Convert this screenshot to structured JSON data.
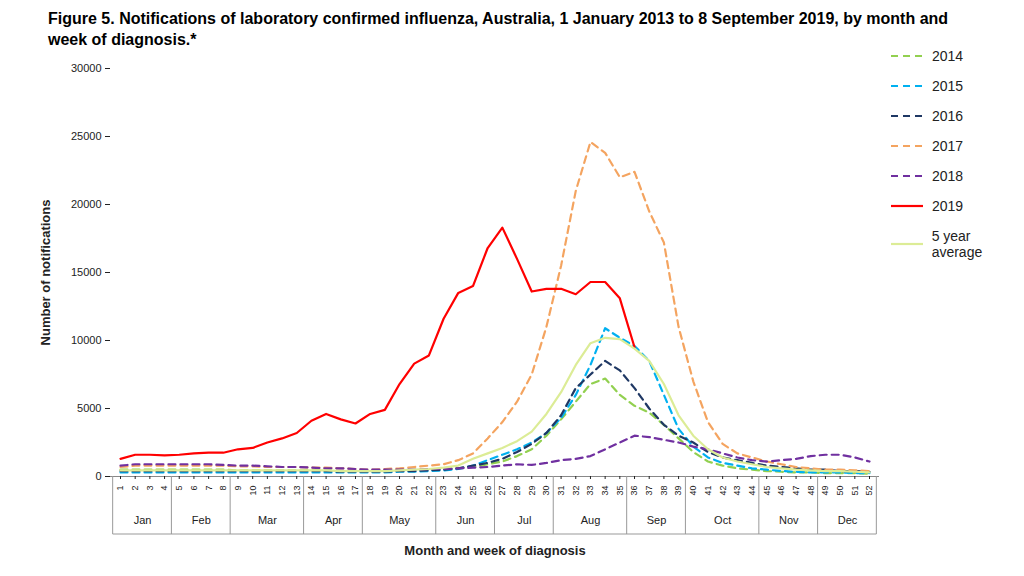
{
  "chart_data": {
    "type": "line",
    "title": "Figure 5. Notifications of laboratory confirmed influenza, Australia, 1 January 2013 to 8 September 2019, by month and week of diagnosis.*",
    "x_label": "Month and week of diagnosis",
    "y_label": "Number of notifications",
    "x": [
      1,
      2,
      3,
      4,
      5,
      6,
      7,
      8,
      9,
      10,
      11,
      12,
      13,
      14,
      15,
      16,
      17,
      18,
      19,
      20,
      21,
      22,
      23,
      24,
      25,
      26,
      27,
      28,
      29,
      30,
      31,
      32,
      33,
      34,
      35,
      36,
      37,
      38,
      39,
      40,
      41,
      42,
      43,
      44,
      45,
      46,
      47,
      48,
      49,
      50,
      51,
      52
    ],
    "xlim": [
      1,
      52
    ],
    "xticks": [
      1,
      2,
      3,
      4,
      5,
      6,
      7,
      8,
      9,
      10,
      11,
      12,
      13,
      14,
      15,
      16,
      17,
      18,
      19,
      20,
      21,
      22,
      23,
      24,
      25,
      26,
      27,
      28,
      29,
      30,
      31,
      32,
      33,
      34,
      35,
      36,
      37,
      38,
      39,
      40,
      41,
      42,
      43,
      44,
      45,
      46,
      47,
      48,
      49,
      50,
      51,
      52
    ],
    "ylim": [
      0,
      30000
    ],
    "yticks": [
      0,
      5000,
      10000,
      15000,
      20000,
      25000,
      30000
    ],
    "grid": false,
    "legend": "right",
    "months": [
      {
        "label": "Jan",
        "start": 1,
        "end": 4
      },
      {
        "label": "Feb",
        "start": 5,
        "end": 8
      },
      {
        "label": "Mar",
        "start": 9,
        "end": 13
      },
      {
        "label": "Apr",
        "start": 14,
        "end": 17
      },
      {
        "label": "May",
        "start": 18,
        "end": 22
      },
      {
        "label": "Jun",
        "start": 23,
        "end": 26
      },
      {
        "label": "Jul",
        "start": 27,
        "end": 30
      },
      {
        "label": "Aug",
        "start": 31,
        "end": 35
      },
      {
        "label": "Sep",
        "start": 36,
        "end": 39
      },
      {
        "label": "Oct",
        "start": 40,
        "end": 44
      },
      {
        "label": "Nov",
        "start": 45,
        "end": 48
      },
      {
        "label": "Dec",
        "start": 49,
        "end": 52
      }
    ],
    "series": [
      {
        "name": "2014",
        "color": "#92d050",
        "line_style": "dashed",
        "values": [
          500,
          500,
          500,
          500,
          500,
          500,
          500,
          500,
          450,
          450,
          450,
          450,
          450,
          450,
          450,
          400,
          400,
          400,
          400,
          450,
          450,
          500,
          550,
          600,
          700,
          900,
          1100,
          1500,
          2000,
          3000,
          4200,
          5500,
          6800,
          7200,
          6000,
          5200,
          4700,
          3800,
          2800,
          1800,
          1100,
          800,
          600,
          500,
          400,
          350,
          300,
          300,
          250,
          250,
          250,
          200
        ]
      },
      {
        "name": "2015",
        "color": "#00b0f0",
        "line_style": "dashed",
        "values": [
          300,
          300,
          300,
          300,
          300,
          300,
          300,
          300,
          300,
          300,
          300,
          300,
          300,
          300,
          300,
          300,
          300,
          300,
          300,
          350,
          350,
          400,
          450,
          550,
          800,
          1200,
          1600,
          2000,
          2500,
          3200,
          4300,
          6000,
          8200,
          10900,
          10200,
          9600,
          8500,
          6000,
          3500,
          2200,
          1400,
          1000,
          800,
          600,
          500,
          400,
          350,
          300,
          300,
          300,
          250,
          250
        ]
      },
      {
        "name": "2016",
        "color": "#1f3864",
        "line_style": "dashed",
        "values": [
          400,
          400,
          400,
          400,
          400,
          400,
          400,
          400,
          400,
          400,
          400,
          400,
          400,
          400,
          400,
          350,
          350,
          350,
          350,
          400,
          400,
          450,
          500,
          600,
          800,
          1000,
          1300,
          1800,
          2400,
          3200,
          4500,
          6500,
          7500,
          8500,
          7800,
          6500,
          5000,
          3800,
          3000,
          2500,
          1800,
          1400,
          1200,
          1000,
          800,
          700,
          600,
          500,
          500,
          400,
          400,
          350
        ]
      },
      {
        "name": "2017",
        "color": "#f4a460",
        "line_style": "dashed",
        "values": [
          700,
          800,
          800,
          800,
          800,
          800,
          800,
          800,
          750,
          750,
          700,
          700,
          700,
          650,
          650,
          600,
          550,
          500,
          550,
          600,
          700,
          800,
          900,
          1200,
          1700,
          2800,
          4000,
          5500,
          7500,
          11000,
          15500,
          21000,
          24600,
          23800,
          22000,
          22400,
          19500,
          17200,
          11000,
          7000,
          4000,
          2400,
          1700,
          1400,
          1100,
          900,
          700,
          600,
          500,
          500,
          450,
          400
        ]
      },
      {
        "name": "2018",
        "color": "#7030a0",
        "line_style": "dashed",
        "values": [
          800,
          900,
          900,
          900,
          900,
          900,
          900,
          850,
          800,
          800,
          750,
          700,
          700,
          650,
          600,
          600,
          550,
          500,
          500,
          500,
          500,
          550,
          550,
          600,
          650,
          700,
          800,
          900,
          850,
          1000,
          1200,
          1300,
          1500,
          2000,
          2500,
          3000,
          2900,
          2700,
          2500,
          2200,
          2000,
          1700,
          1400,
          1200,
          1100,
          1200,
          1300,
          1500,
          1600,
          1600,
          1400,
          1100
        ]
      },
      {
        "name": "2019",
        "color": "#ff0000",
        "line_style": "solid",
        "values": [
          1300,
          1600,
          1600,
          1550,
          1600,
          1700,
          1750,
          1750,
          2000,
          2100,
          2500,
          2800,
          3200,
          4100,
          4600,
          4200,
          3900,
          4600,
          4900,
          6800,
          8300,
          8900,
          11600,
          13500,
          14000,
          16800,
          18300,
          16000,
          13600,
          13800,
          13800,
          13400,
          14300,
          14300,
          13100,
          9500,
          null,
          null,
          null,
          null,
          null,
          null,
          null,
          null,
          null,
          null,
          null,
          null,
          null,
          null,
          null,
          null
        ]
      },
      {
        "name": "5 year average",
        "color": "#dcec96",
        "line_style": "solid",
        "values": [
          450,
          450,
          450,
          450,
          450,
          450,
          450,
          450,
          450,
          450,
          450,
          450,
          450,
          450,
          450,
          400,
          400,
          400,
          400,
          450,
          500,
          550,
          650,
          800,
          1300,
          1700,
          2100,
          2600,
          3300,
          4600,
          6200,
          8200,
          9800,
          10200,
          10100,
          9400,
          8500,
          6800,
          4500,
          3000,
          2000,
          1400,
          1100,
          900,
          700,
          600,
          500,
          450,
          400,
          400,
          350,
          300
        ]
      }
    ]
  }
}
